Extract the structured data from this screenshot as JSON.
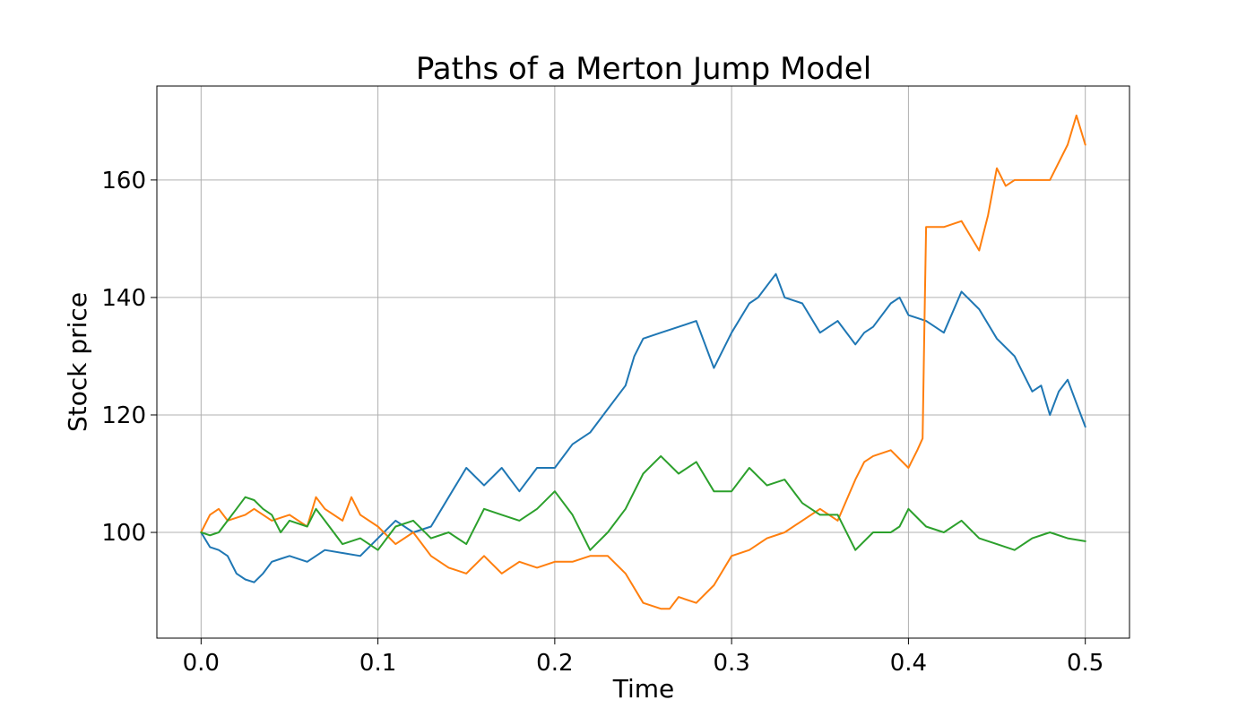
{
  "chart_data": {
    "type": "line",
    "title": "Paths of a Merton Jump Model",
    "xlabel": "Time",
    "ylabel": "Stock price",
    "xlim": [
      -0.025,
      0.525
    ],
    "ylim": [
      82,
      176
    ],
    "xticks": [
      0.0,
      0.1,
      0.2,
      0.3,
      0.4,
      0.5
    ],
    "xtick_labels": [
      "0.0",
      "0.1",
      "0.2",
      "0.3",
      "0.4",
      "0.5"
    ],
    "yticks": [
      100,
      120,
      140,
      160
    ],
    "ytick_labels": [
      "100",
      "120",
      "140",
      "160"
    ],
    "grid": true,
    "legend": "none",
    "colors": {
      "series": [
        "#1f77b4",
        "#ff7f0e",
        "#2ca02c"
      ],
      "grid": "#b0b0b0",
      "axes": "#000000"
    },
    "series": [
      {
        "color": "#1f77b4",
        "x": [
          0,
          0.005,
          0.01,
          0.015,
          0.02,
          0.025,
          0.03,
          0.035,
          0.04,
          0.045,
          0.05,
          0.06,
          0.07,
          0.08,
          0.09,
          0.1,
          0.11,
          0.12,
          0.13,
          0.14,
          0.15,
          0.16,
          0.17,
          0.18,
          0.19,
          0.2,
          0.21,
          0.22,
          0.23,
          0.24,
          0.245,
          0.25,
          0.26,
          0.27,
          0.28,
          0.29,
          0.3,
          0.31,
          0.315,
          0.325,
          0.33,
          0.34,
          0.35,
          0.36,
          0.37,
          0.375,
          0.38,
          0.39,
          0.395,
          0.4,
          0.41,
          0.42,
          0.43,
          0.44,
          0.45,
          0.46,
          0.465,
          0.47,
          0.475,
          0.48,
          0.485,
          0.49,
          0.495,
          0.5
        ],
        "y": [
          100,
          97.5,
          97,
          96,
          93,
          92,
          91.5,
          93,
          95,
          95.5,
          96,
          95,
          97,
          96.5,
          96,
          99,
          102,
          100,
          101,
          106,
          111,
          108,
          111,
          107,
          111,
          111,
          115,
          117,
          121,
          125,
          130,
          133,
          134,
          135,
          136,
          128,
          134,
          139,
          140,
          144,
          140,
          139,
          134,
          136,
          132,
          134,
          135,
          139,
          140,
          137,
          136,
          134,
          141,
          138,
          133,
          130,
          127,
          124,
          125,
          120,
          124,
          126,
          122,
          118
        ]
      },
      {
        "color": "#ff7f0e",
        "x": [
          0,
          0.005,
          0.01,
          0.015,
          0.02,
          0.025,
          0.03,
          0.04,
          0.05,
          0.06,
          0.065,
          0.07,
          0.08,
          0.085,
          0.09,
          0.1,
          0.11,
          0.12,
          0.13,
          0.14,
          0.15,
          0.16,
          0.17,
          0.18,
          0.19,
          0.2,
          0.21,
          0.22,
          0.23,
          0.24,
          0.25,
          0.26,
          0.265,
          0.27,
          0.28,
          0.29,
          0.3,
          0.31,
          0.32,
          0.33,
          0.34,
          0.35,
          0.36,
          0.37,
          0.375,
          0.38,
          0.39,
          0.4,
          0.405,
          0.408,
          0.409,
          0.41,
          0.42,
          0.43,
          0.44,
          0.445,
          0.45,
          0.455,
          0.46,
          0.47,
          0.48,
          0.49,
          0.495,
          0.5
        ],
        "y": [
          100,
          103,
          104,
          102,
          102.5,
          103,
          104,
          102,
          103,
          101,
          106,
          104,
          102,
          106,
          103,
          101,
          98,
          100,
          96,
          94,
          93,
          96,
          93,
          95,
          94,
          95,
          95,
          96,
          96,
          93,
          88,
          87,
          87,
          89,
          88,
          91,
          96,
          97,
          99,
          100,
          102,
          104,
          102,
          109,
          112,
          113,
          114,
          111,
          114,
          116,
          135,
          152,
          152,
          153,
          148,
          154,
          162,
          159,
          160,
          160,
          160,
          166,
          171,
          166
        ]
      },
      {
        "color": "#2ca02c",
        "x": [
          0,
          0.005,
          0.01,
          0.015,
          0.02,
          0.025,
          0.03,
          0.035,
          0.04,
          0.045,
          0.05,
          0.06,
          0.065,
          0.07,
          0.08,
          0.09,
          0.1,
          0.11,
          0.12,
          0.13,
          0.14,
          0.15,
          0.16,
          0.17,
          0.18,
          0.19,
          0.2,
          0.21,
          0.22,
          0.23,
          0.24,
          0.25,
          0.26,
          0.27,
          0.28,
          0.29,
          0.3,
          0.31,
          0.32,
          0.33,
          0.34,
          0.35,
          0.36,
          0.37,
          0.38,
          0.39,
          0.395,
          0.4,
          0.41,
          0.42,
          0.43,
          0.44,
          0.45,
          0.46,
          0.47,
          0.48,
          0.49,
          0.5
        ],
        "y": [
          100,
          99.5,
          100,
          102,
          104,
          106,
          105.5,
          104,
          103,
          100,
          102,
          101,
          104,
          102,
          98,
          99,
          97,
          101,
          102,
          99,
          100,
          98,
          104,
          103,
          102,
          104,
          107,
          103,
          97,
          100,
          104,
          110,
          113,
          110,
          112,
          107,
          107,
          111,
          108,
          109,
          105,
          103,
          103,
          97,
          100,
          100,
          101,
          104,
          101,
          100,
          102,
          99,
          98,
          97,
          99,
          100,
          99,
          98.5
        ]
      }
    ]
  }
}
